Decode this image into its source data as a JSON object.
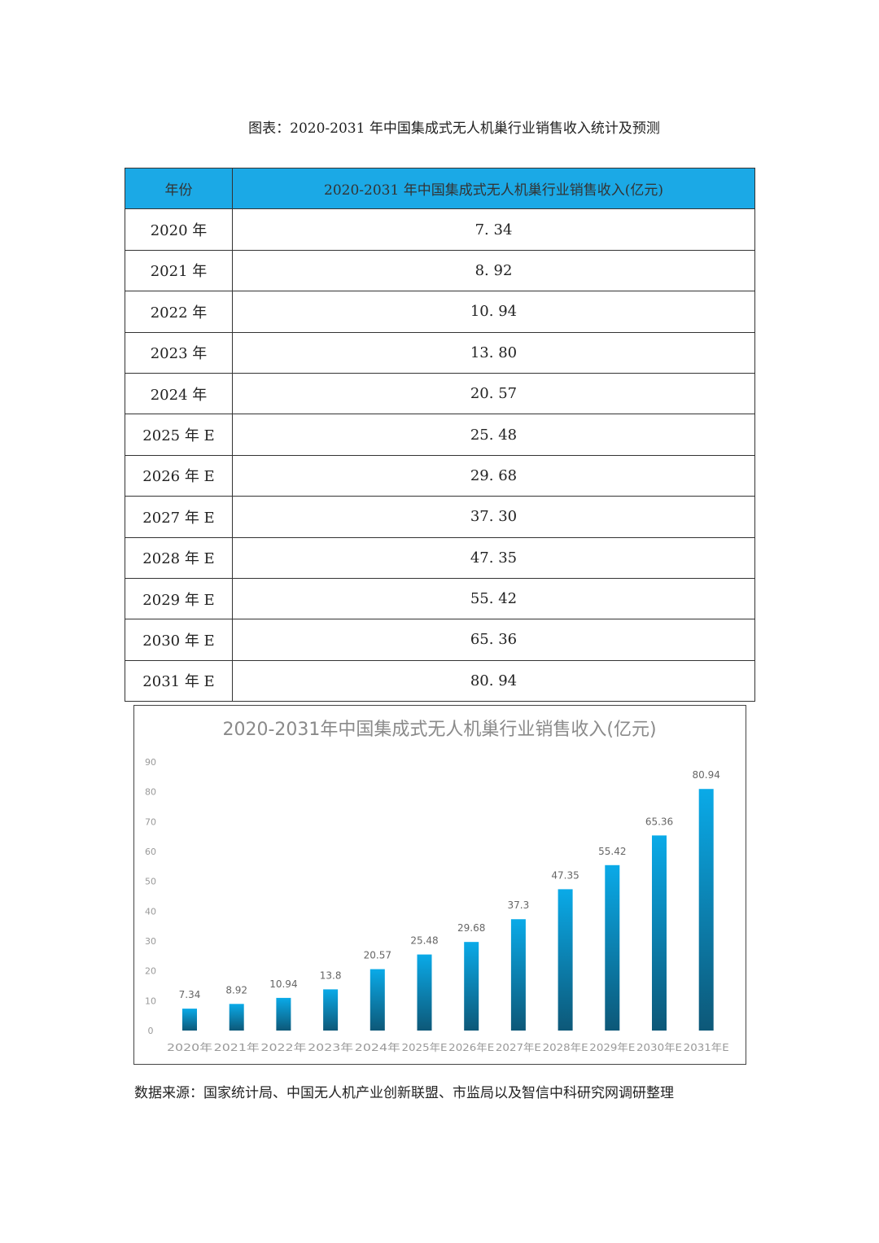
{
  "document": {
    "title": "图表：2020-2031 年中国集成式无人机巢行业销售收入统计及预测",
    "source": "数据来源：国家统计局、中国无人机产业创新联盟、市监局以及智信中科研究网调研整理"
  },
  "table": {
    "headers": [
      "年份",
      "2020-2031 年中国集成式无人机巢行业销售收入(亿元)"
    ],
    "rows": [
      [
        "2020 年",
        "7. 34"
      ],
      [
        "2021 年",
        "8. 92"
      ],
      [
        "2022 年",
        "10. 94"
      ],
      [
        "2023 年",
        "13. 80"
      ],
      [
        "2024 年",
        "20. 57"
      ],
      [
        "2025 年 E",
        "25. 48"
      ],
      [
        "2026 年 E",
        "29. 68"
      ],
      [
        "2027 年 E",
        "37. 30"
      ],
      [
        "2028 年 E",
        "47. 35"
      ],
      [
        "2029 年 E",
        "55. 42"
      ],
      [
        "2030 年 E",
        "65. 36"
      ],
      [
        "2031 年 E",
        "80. 94"
      ]
    ],
    "header_color": "#1ba9e6"
  },
  "chart_data": {
    "type": "bar",
    "title": "2020-2031年中国集成式无人机巢行业销售收入(亿元)",
    "xlabel": "",
    "ylabel": "",
    "categories": [
      "2020年",
      "2021年",
      "2022年",
      "2023年",
      "2024年",
      "2025年E",
      "2026年E",
      "2027年E",
      "2028年E",
      "2029年E",
      "2030年E",
      "2031年E"
    ],
    "values": [
      7.34,
      8.92,
      10.94,
      13.8,
      20.57,
      25.48,
      29.68,
      37.3,
      47.35,
      55.42,
      65.36,
      80.94
    ],
    "data_labels": [
      "7.34",
      "8.92",
      "10.94",
      "13.8",
      "20.57",
      "25.48",
      "29.68",
      "37.3",
      "47.35",
      "55.42",
      "65.36",
      "80.94"
    ],
    "ylim": [
      0,
      90
    ],
    "yticks": [
      "0",
      "10",
      "20",
      "30",
      "40",
      "50",
      "60",
      "70",
      "80",
      "90"
    ],
    "grid": false,
    "legend": "none",
    "bar_color_top": "#0aaae8",
    "bar_color_bottom": "#0d5878"
  }
}
